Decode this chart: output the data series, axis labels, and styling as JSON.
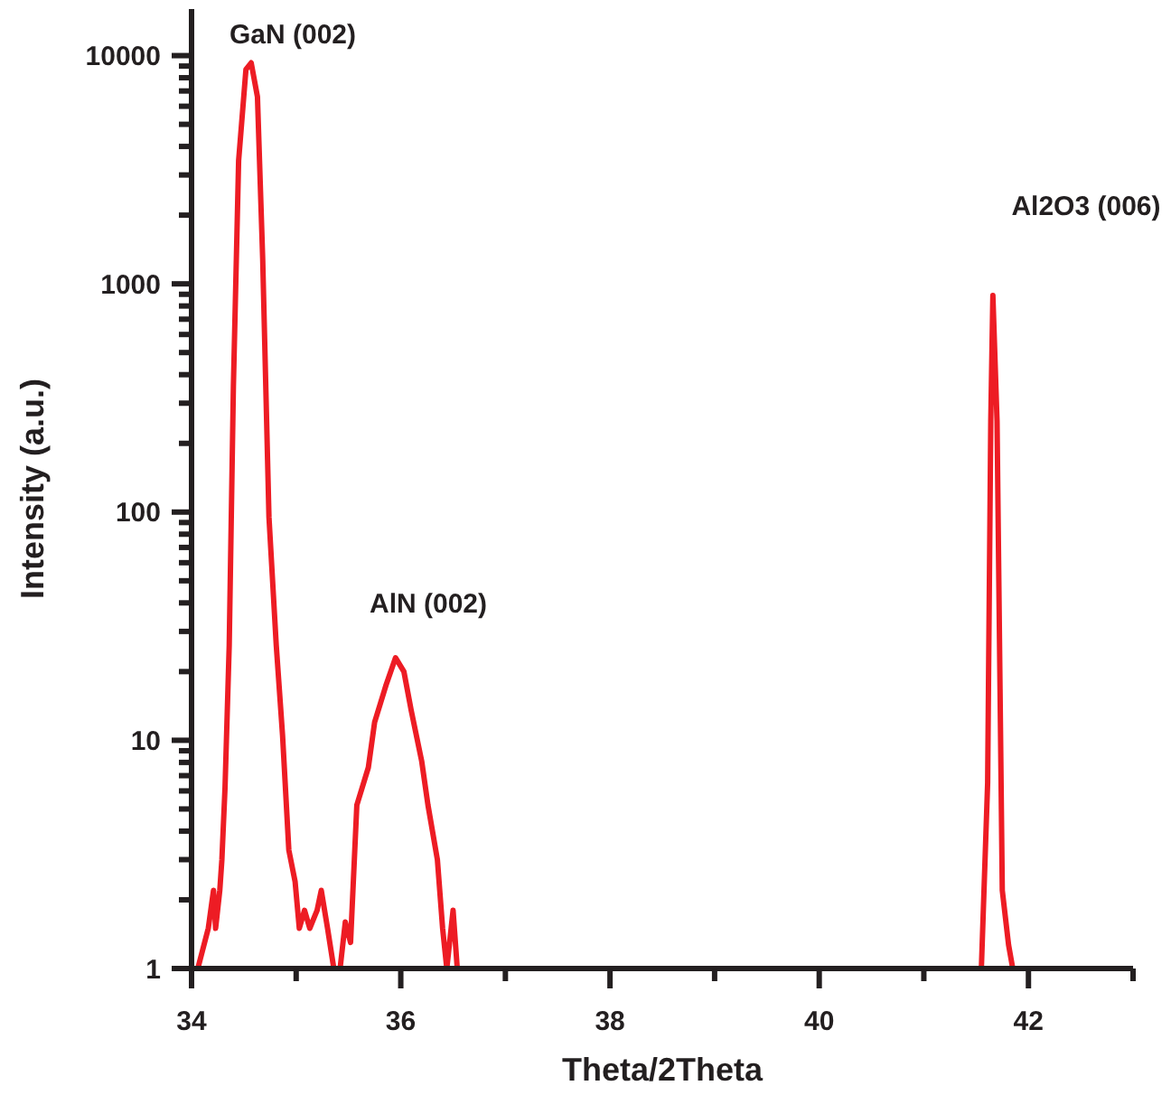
{
  "chart_data": {
    "type": "line",
    "xlabel": "Theta/2Theta",
    "ylabel": "Intensity (a.u.)",
    "log": true,
    "grid": false,
    "marker": "none",
    "line_style": "solid",
    "xlim": [
      34,
      43
    ],
    "ylim": [
      1,
      16000
    ],
    "xticks": [
      34,
      {
        "value": 35,
        "label": null
      },
      36,
      {
        "value": 37,
        "label": null
      },
      38,
      {
        "value": 39,
        "label": null
      },
      40,
      {
        "value": 41,
        "label": null
      },
      42,
      {
        "value": 43,
        "label": null
      }
    ],
    "yticks": [
      1,
      {
        "value": 2,
        "label": null
      },
      {
        "value": 3,
        "label": null
      },
      {
        "value": 4,
        "label": null
      },
      {
        "value": 5,
        "label": null
      },
      {
        "value": 6,
        "label": null
      },
      {
        "value": 7,
        "label": null
      },
      {
        "value": 8,
        "label": null
      },
      {
        "value": 9,
        "label": null
      },
      10,
      {
        "value": 20,
        "label": null
      },
      {
        "value": 30,
        "label": null
      },
      {
        "value": 40,
        "label": null
      },
      {
        "value": 50,
        "label": null
      },
      {
        "value": 60,
        "label": null
      },
      {
        "value": 70,
        "label": null
      },
      {
        "value": 80,
        "label": null
      },
      {
        "value": 90,
        "label": null
      },
      100,
      {
        "value": 200,
        "label": null
      },
      {
        "value": 300,
        "label": null
      },
      {
        "value": 400,
        "label": null
      },
      {
        "value": 500,
        "label": null
      },
      {
        "value": 600,
        "label": null
      },
      {
        "value": 700,
        "label": null
      },
      {
        "value": 800,
        "label": null
      },
      {
        "value": 900,
        "label": null
      },
      1000,
      {
        "value": 2000,
        "label": null
      },
      {
        "value": 3000,
        "label": null
      },
      {
        "value": 4000,
        "label": null
      },
      {
        "value": 5000,
        "label": null
      },
      {
        "value": 6000,
        "label": null
      },
      {
        "value": 7000,
        "label": null
      },
      {
        "value": 8000,
        "label": null
      },
      {
        "value": 9000,
        "label": null
      },
      10000
    ],
    "annotations": [
      "GaN (002)",
      "AlN (002)",
      "Al2O3 (006)"
    ],
    "series": [
      {
        "color": "#ed1c24",
        "x": [
          34.06,
          34.16,
          34.21,
          34.23,
          34.27,
          34.29,
          34.32,
          34.36,
          34.4,
          34.45,
          34.52,
          34.57,
          34.63,
          34.68,
          34.74,
          34.81,
          34.87,
          34.93,
          34.99,
          35.03,
          35.08,
          35.13,
          35.2,
          35.24,
          35.3,
          35.36,
          35.42,
          35.47,
          35.52,
          35.58,
          35.69,
          35.75,
          35.86,
          35.95,
          36.03,
          36.1,
          36.2,
          36.26,
          36.35,
          36.4,
          36.44,
          36.5,
          36.54,
          41.55,
          41.61,
          41.64,
          41.66,
          41.7,
          41.75,
          41.81,
          41.85
        ],
        "values": [
          1,
          1.5,
          2.2,
          1.5,
          2.2,
          3,
          6.2,
          26,
          355,
          3470,
          8700,
          9300,
          6600,
          1290,
          95,
          26,
          10.5,
          3.3,
          2.4,
          1.5,
          1.8,
          1.5,
          1.8,
          2.2,
          1.5,
          1,
          1,
          1.6,
          1.3,
          5.2,
          7.6,
          12,
          17.5,
          23,
          20,
          13.5,
          8.1,
          5.2,
          3,
          1.5,
          1,
          1.8,
          1,
          1,
          6.5,
          250,
          890,
          250,
          2.2,
          1.27,
          1
        ]
      }
    ]
  }
}
